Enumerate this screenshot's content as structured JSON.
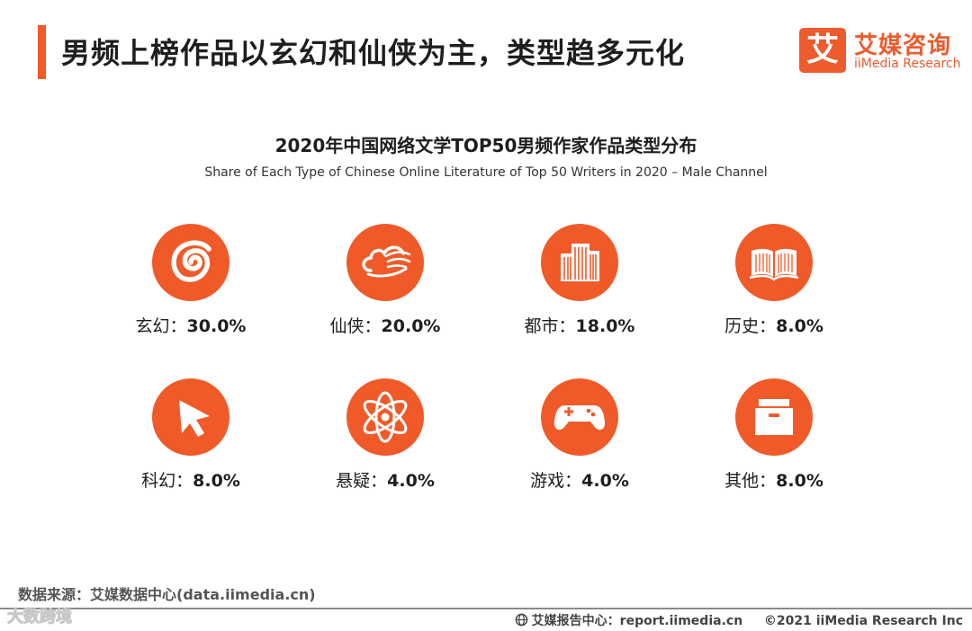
{
  "header": {
    "title": "男频上榜作品以玄幻和仙侠为主，类型趋多元化"
  },
  "brand": {
    "mark": "艾",
    "name_cn": "艾媒咨询",
    "name_en": "iiMedia Research",
    "accent_color": "#f05a28"
  },
  "chart_data": {
    "type": "table",
    "title": "2020年中国网络文学TOP50男频作家作品类型分布",
    "subtitle": "Share of Each Type of Chinese Online Literature of Top 50 Writers in 2020 – Male Channel",
    "categories": [
      "玄幻",
      "仙侠",
      "都市",
      "历史",
      "科幻",
      "悬疑",
      "游戏",
      "其他"
    ],
    "values": [
      30.0,
      20.0,
      18.0,
      8.0,
      8.0,
      4.0,
      4.0,
      8.0
    ],
    "unit": "%",
    "labels": [
      "玄幻：",
      "仙侠：",
      "都市：",
      "历史：",
      "科幻：",
      "悬疑：",
      "游戏：",
      "其他："
    ],
    "value_labels": [
      "30.0%",
      "20.0%",
      "18.0%",
      "8.0%",
      "8.0%",
      "4.0%",
      "4.0%",
      "8.0%"
    ],
    "icons": [
      "swirl-icon",
      "cloud-icon",
      "city-buildings-icon",
      "open-book-icon",
      "cursor-arrow-icon",
      "atom-icon",
      "gamepad-icon",
      "archive-box-icon"
    ]
  },
  "footer": {
    "source": "数据来源：艾媒数据中心(data.iimedia.cn)",
    "report_center": "艾媒报告中心：report.iimedia.cn",
    "copyright": "©2021  iiMedia Research  Inc",
    "watermark": "大数跨境"
  }
}
